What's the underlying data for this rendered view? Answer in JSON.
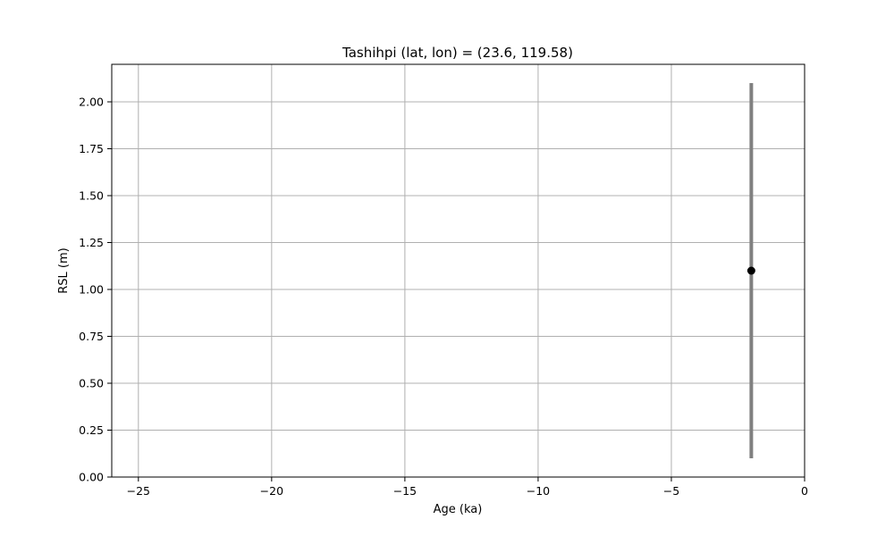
{
  "chart_data": {
    "type": "scatter",
    "title": "Tashihpi (lat, lon) = (23.6, 119.58)",
    "xlabel": "Age (ka)",
    "ylabel": "RSL (m)",
    "xlim": [
      -26,
      0
    ],
    "ylim": [
      0,
      2.2
    ],
    "xticks": [
      -25,
      -20,
      -15,
      -10,
      -5,
      0
    ],
    "xtick_labels": [
      "−25",
      "−20",
      "−15",
      "−10",
      "−5",
      "0"
    ],
    "yticks": [
      0,
      0.25,
      0.5,
      0.75,
      1.0,
      1.25,
      1.5,
      1.75,
      2.0
    ],
    "ytick_labels": [
      "0.00",
      "0.25",
      "0.50",
      "0.75",
      "1.00",
      "1.25",
      "1.50",
      "1.75",
      "2.00"
    ],
    "grid": true,
    "points": [
      {
        "x": -2.0,
        "y": 1.1,
        "y_low": 0.1,
        "y_high": 2.1
      }
    ],
    "colors": {
      "point": "#000000",
      "errorbar": "#808080",
      "grid": "#b0b0b0"
    }
  }
}
